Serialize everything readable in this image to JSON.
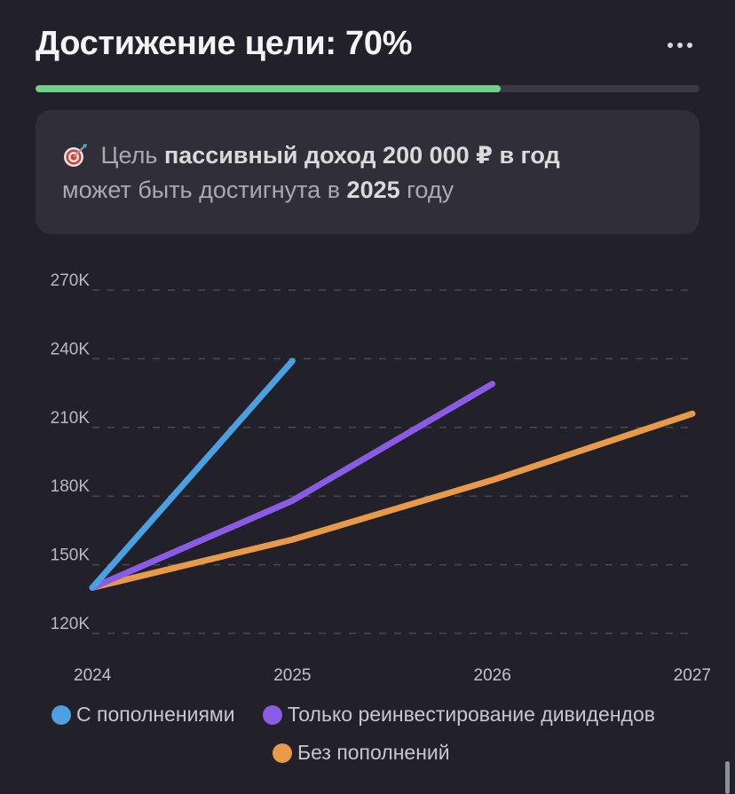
{
  "header": {
    "title": "Достижение цели: 70%",
    "more_icon": "more-horizontal-icon"
  },
  "progress": {
    "value_percent": 70,
    "fill_color": "#6fd08c",
    "track_color": "#3b3a44"
  },
  "goal_card": {
    "icon": "target-dart-icon",
    "line1_prefix": "Цель",
    "line1_bold": "пассивный доход 200 000 ₽ в год",
    "line2_prefix": "может быть достигнута в",
    "line2_bold": "2025",
    "line2_suffix": "году"
  },
  "chart_data": {
    "type": "line",
    "x": [
      2024,
      2025,
      2026,
      2027
    ],
    "x_tick_labels": [
      "2024",
      "2025",
      "2026",
      "2027"
    ],
    "y_tick_labels": [
      "120K",
      "150K",
      "180K",
      "210K",
      "240K",
      "270K"
    ],
    "y_ticks": [
      120000,
      150000,
      180000,
      210000,
      240000,
      270000
    ],
    "ylim": [
      120000,
      270000
    ],
    "xlim": [
      2024,
      2027
    ],
    "grid": "horizontal-dashed",
    "legend_position": "bottom",
    "series": [
      {
        "name": "С пополнениями",
        "color": "#4aa0e0",
        "points": [
          [
            2024,
            140000
          ],
          [
            2025,
            239000
          ]
        ]
      },
      {
        "name": "Только реинвестирование дивидендов",
        "color": "#8a5ce6",
        "points": [
          [
            2024,
            140000
          ],
          [
            2025,
            178000
          ],
          [
            2026,
            229000
          ]
        ]
      },
      {
        "name": "Без пополнений",
        "color": "#e79b4a",
        "points": [
          [
            2024,
            140000
          ],
          [
            2025,
            161000
          ],
          [
            2026,
            187000
          ],
          [
            2027,
            216000
          ]
        ]
      }
    ]
  }
}
